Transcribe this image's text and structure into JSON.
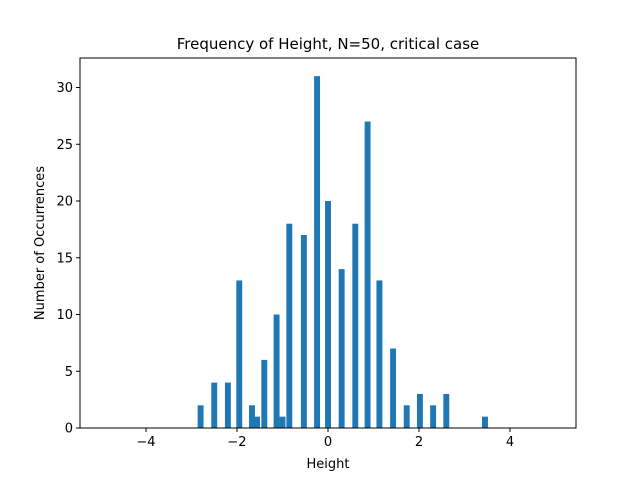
{
  "chart_data": {
    "type": "bar",
    "title": "Frequency of Height, N=50, critical case",
    "xlabel": "Height",
    "ylabel": "Number of Occurrences",
    "xlim": [
      -5.45,
      5.45
    ],
    "ylim": [
      0,
      32.6
    ],
    "xticks": [
      -4,
      -2,
      0,
      2,
      4
    ],
    "xtick_labels": [
      "−4",
      "−2",
      "0",
      "2",
      "4"
    ],
    "yticks": [
      0,
      5,
      10,
      15,
      20,
      25,
      30
    ],
    "ytick_labels": [
      "0",
      "5",
      "10",
      "15",
      "20",
      "25",
      "30"
    ],
    "grid": false,
    "bar_width": 0.13,
    "color": "#1f77b4",
    "x": [
      -2.8,
      -2.5,
      -2.2,
      -1.95,
      -1.67,
      -1.56,
      -1.4,
      -1.13,
      -1.0,
      -0.85,
      -0.53,
      -0.24,
      0.0,
      0.3,
      0.6,
      0.87,
      1.13,
      1.43,
      1.73,
      2.02,
      2.31,
      2.6,
      3.45
    ],
    "values": [
      2,
      4,
      4,
      13,
      2,
      1,
      6,
      10,
      1,
      18,
      17,
      31,
      20,
      14,
      18,
      27,
      13,
      7,
      2,
      3,
      2,
      3,
      1
    ]
  }
}
